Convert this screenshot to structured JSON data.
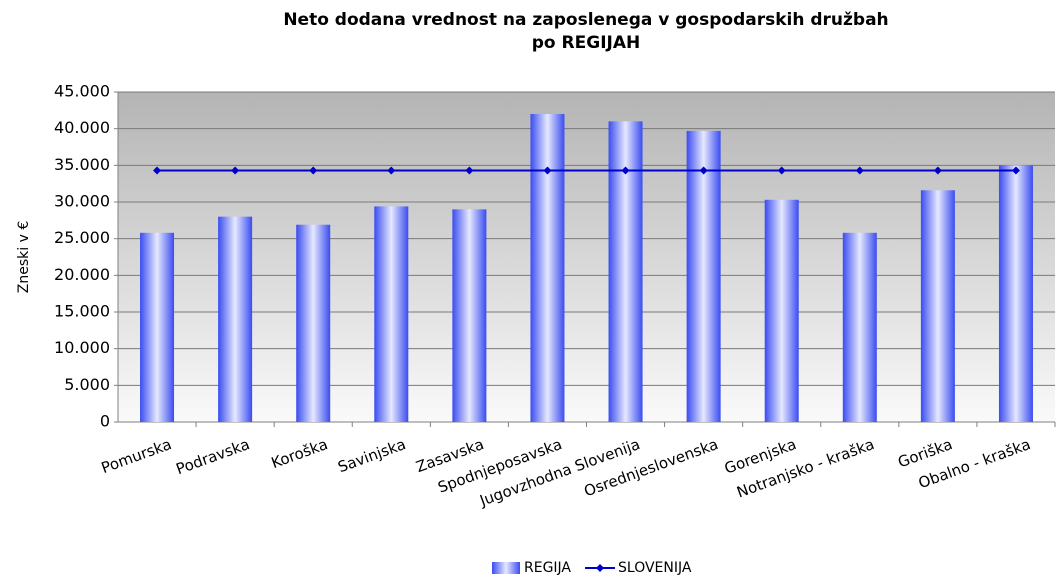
{
  "chart_data": {
    "type": "bar",
    "title": [
      "Neto dodana vrednost na zaposlenega v gospodarskih družbah",
      "po REGIJAH"
    ],
    "y_label": "Zneski v €",
    "categories": [
      "Pomurska",
      "Podravska",
      "Koroška",
      "Savinjska",
      "Zasavska",
      "Spodnjeposavska",
      "Jugovzhodna Slovenija",
      "Osrednjeslovenska",
      "Gorenjska",
      "Notranjsko - kraška",
      "Goriška",
      "Obalno - kraška"
    ],
    "series": [
      {
        "name": "REGIJA",
        "type": "bar",
        "color": "#6b7cff",
        "values": [
          25800,
          28000,
          26900,
          29400,
          29000,
          42000,
          41000,
          39700,
          30300,
          25800,
          31600,
          35000
        ]
      },
      {
        "name": "SLOVENIJA",
        "type": "line",
        "color": "#0000cc",
        "values": [
          34300,
          34300,
          34300,
          34300,
          34300,
          34300,
          34300,
          34300,
          34300,
          34300,
          34300,
          34300
        ]
      }
    ],
    "ylim": [
      0,
      45000
    ],
    "yticks": [
      0,
      {
        "value": 5000,
        "label": "5.000"
      },
      {
        "value": 10000,
        "label": "10.000"
      },
      {
        "value": 15000,
        "label": "15.000"
      },
      {
        "value": 20000,
        "label": "20.000"
      },
      {
        "value": 25000,
        "label": "25.000"
      },
      {
        "value": 30000,
        "label": "30.000"
      },
      {
        "value": 35000,
        "label": "35.000"
      },
      {
        "value": 40000,
        "label": "40.000"
      },
      {
        "value": 45000,
        "label": "45.000"
      }
    ],
    "grid": true,
    "legend": "bottom"
  }
}
